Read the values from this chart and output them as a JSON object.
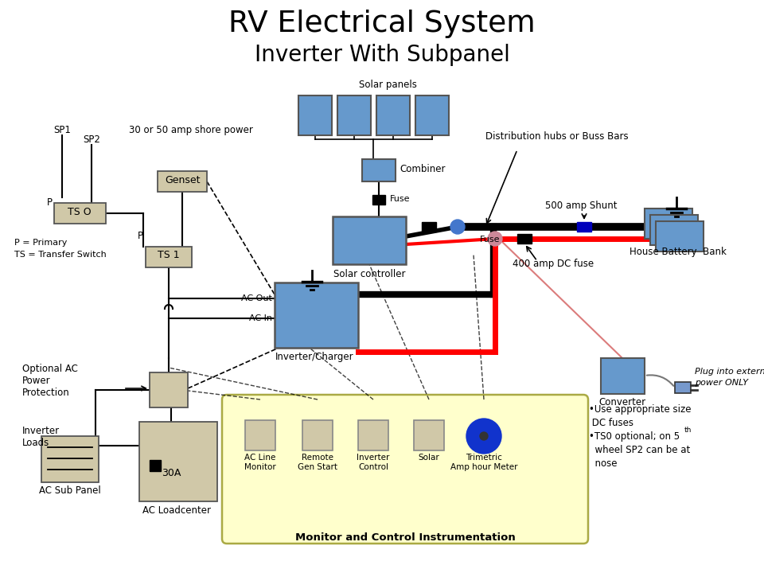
{
  "title1": "RV Electrical System",
  "title2": "Inverter With Subpanel",
  "bg_color": "#ffffff",
  "blue_box": "#6699cc",
  "tan_box": "#d0c8a8",
  "yellow_bg": "#ffffcc",
  "box_edge": "#555555",
  "notes": [
    "•Use appropriate size",
    " DC fuses",
    "•TS0 optional; on 5",
    "  wheel SP2 can be at",
    "  nose"
  ]
}
